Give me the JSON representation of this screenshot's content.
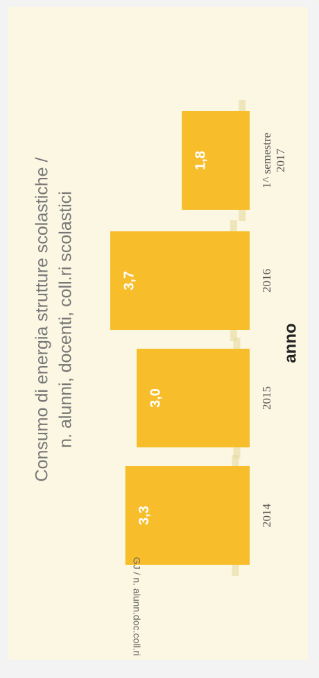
{
  "chart_data": {
    "type": "bar",
    "title_lines": [
      "Consumo di energia strutture scolastiche /",
      "n. alunni, docenti, coll.ri scolastici"
    ],
    "xlabel": "anno",
    "ylabel": "GJ / n. alunn.doc.coll.ri",
    "categories": [
      [
        "2014"
      ],
      [
        "2015"
      ],
      [
        "2016"
      ],
      [
        "1^ semestre",
        "2017"
      ]
    ],
    "values": [
      3.3,
      3.0,
      3.7,
      1.8
    ],
    "data_labels": [
      "3,3",
      "3,0",
      "3,7",
      "1,8"
    ],
    "ylim": [
      0,
      4.2
    ],
    "grid": false,
    "legend": "none",
    "colors": {
      "bar": "#f7bd2a",
      "background": "#fbf7e3"
    }
  }
}
